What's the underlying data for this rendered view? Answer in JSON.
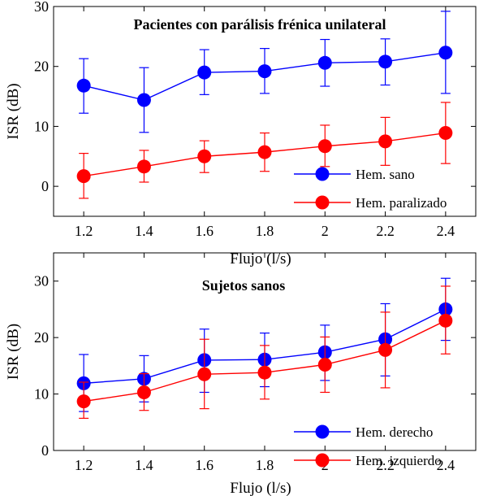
{
  "colors": {
    "series_1": "#0000ff",
    "series_2": "#ff0000",
    "axis": "#000000"
  },
  "chart_data": [
    {
      "type": "line",
      "title": "Pacientes con parálisis frénica unilateral",
      "xlabel": "Flujo (l/s)",
      "ylabel": "ISR (dB)",
      "x": [
        1.2,
        1.4,
        1.6,
        1.8,
        2,
        2.2,
        2.4
      ],
      "x_tick_labels": [
        "1.2",
        "1.4",
        "1.6",
        "1.8",
        "2",
        "2.2",
        "2.4"
      ],
      "xlim": [
        1.1,
        2.5
      ],
      "ylim": [
        -5,
        30
      ],
      "y_ticks": [
        0,
        10,
        20,
        30
      ],
      "y_tick_labels": [
        "0",
        "10",
        "20",
        "30"
      ],
      "legend_position": "bottom-right",
      "grid": false,
      "series": [
        {
          "name": "Hem. sano",
          "color": "#0000ff",
          "values": [
            16.8,
            14.4,
            19.0,
            19.2,
            20.6,
            20.8,
            22.3
          ],
          "err_low": [
            12.2,
            9.0,
            15.3,
            15.5,
            16.7,
            16.9,
            15.5
          ],
          "err_high": [
            21.3,
            19.8,
            22.8,
            23.0,
            24.5,
            24.6,
            29.2
          ]
        },
        {
          "name": "Hem. paralizado",
          "color": "#ff0000",
          "values": [
            1.7,
            3.3,
            5.0,
            5.7,
            6.7,
            7.5,
            8.9
          ],
          "err_low": [
            -2.0,
            0.7,
            2.3,
            2.5,
            3.3,
            3.5,
            3.8
          ],
          "err_high": [
            5.5,
            6.0,
            7.6,
            8.9,
            10.2,
            11.5,
            14.0
          ]
        }
      ]
    },
    {
      "type": "line",
      "title": "Sujetos sanos",
      "xlabel": "Flujo (l/s)",
      "ylabel": "ISR (dB)",
      "x": [
        1.2,
        1.4,
        1.6,
        1.8,
        2,
        2.2,
        2.4
      ],
      "x_tick_labels": [
        "1.2",
        "1.4",
        "1.6",
        "1.8",
        "2",
        "2.2",
        "2.4"
      ],
      "xlim": [
        1.1,
        2.5
      ],
      "ylim": [
        0,
        35
      ],
      "y_ticks": [
        0,
        10,
        20,
        30
      ],
      "y_tick_labels": [
        "0",
        "10",
        "20",
        "30"
      ],
      "legend_position": "bottom-right",
      "grid": false,
      "series": [
        {
          "name": "Hem. derecho",
          "color": "#0000ff",
          "values": [
            11.9,
            12.7,
            16.0,
            16.1,
            17.4,
            19.7,
            25.0
          ],
          "err_low": [
            6.9,
            8.6,
            10.3,
            11.3,
            12.4,
            13.2,
            19.5
          ],
          "err_high": [
            17.0,
            16.8,
            21.5,
            20.8,
            22.2,
            26.0,
            30.5
          ]
        },
        {
          "name": "Hem. izquierdo",
          "color": "#ff0000",
          "values": [
            8.7,
            10.3,
            13.5,
            13.8,
            15.2,
            17.8,
            23.0
          ],
          "err_low": [
            5.7,
            7.1,
            7.4,
            9.1,
            10.3,
            11.1,
            17.1
          ],
          "err_high": [
            12.1,
            13.6,
            19.7,
            18.6,
            20.1,
            24.5,
            29.1
          ]
        }
      ]
    }
  ]
}
